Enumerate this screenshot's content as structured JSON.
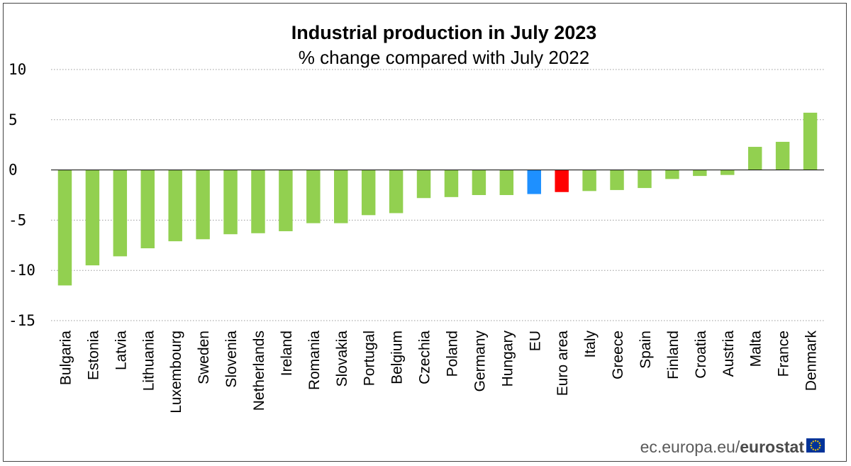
{
  "chart_data": {
    "type": "bar",
    "title": "Industrial production in July 2023",
    "subtitle": "% change compared with July 2022",
    "xlabel": "",
    "ylabel": "",
    "ylim": [
      -15,
      10
    ],
    "yticks": [
      "10",
      "5",
      "0",
      "-5",
      "-10",
      "-15"
    ],
    "grid": true,
    "categories": [
      "Bulgaria",
      "Estonia",
      "Latvia",
      "Lithuania",
      "Luxembourg",
      "Sweden",
      "Slovenia",
      "Netherlands",
      "Ireland",
      "Romania",
      "Slovakia",
      "Portugal",
      "Belgium",
      "Czechia",
      "Poland",
      "Germany",
      "Hungary",
      "EU",
      "Euro area",
      "Italy",
      "Greece",
      "Spain",
      "Finland",
      "Croatia",
      "Austria",
      "Malta",
      "France",
      "Denmark"
    ],
    "values": [
      -11.5,
      -9.5,
      -8.6,
      -7.8,
      -7.1,
      -6.9,
      -6.4,
      -6.3,
      -6.1,
      -5.3,
      -5.3,
      -4.5,
      -4.3,
      -2.8,
      -2.7,
      -2.5,
      -2.5,
      -2.4,
      -2.2,
      -2.1,
      -2.0,
      -1.8,
      -0.9,
      -0.6,
      -0.5,
      2.3,
      2.8,
      5.7
    ],
    "colors": {
      "default": "#92d050",
      "EU": "#1e90ff",
      "Euro area": "#ff0000"
    }
  },
  "source": {
    "prefix": "ec.europa.eu/",
    "brand": "eurostat"
  },
  "flag_colors": {
    "background": "#003399",
    "stars": "#ffcc00"
  }
}
